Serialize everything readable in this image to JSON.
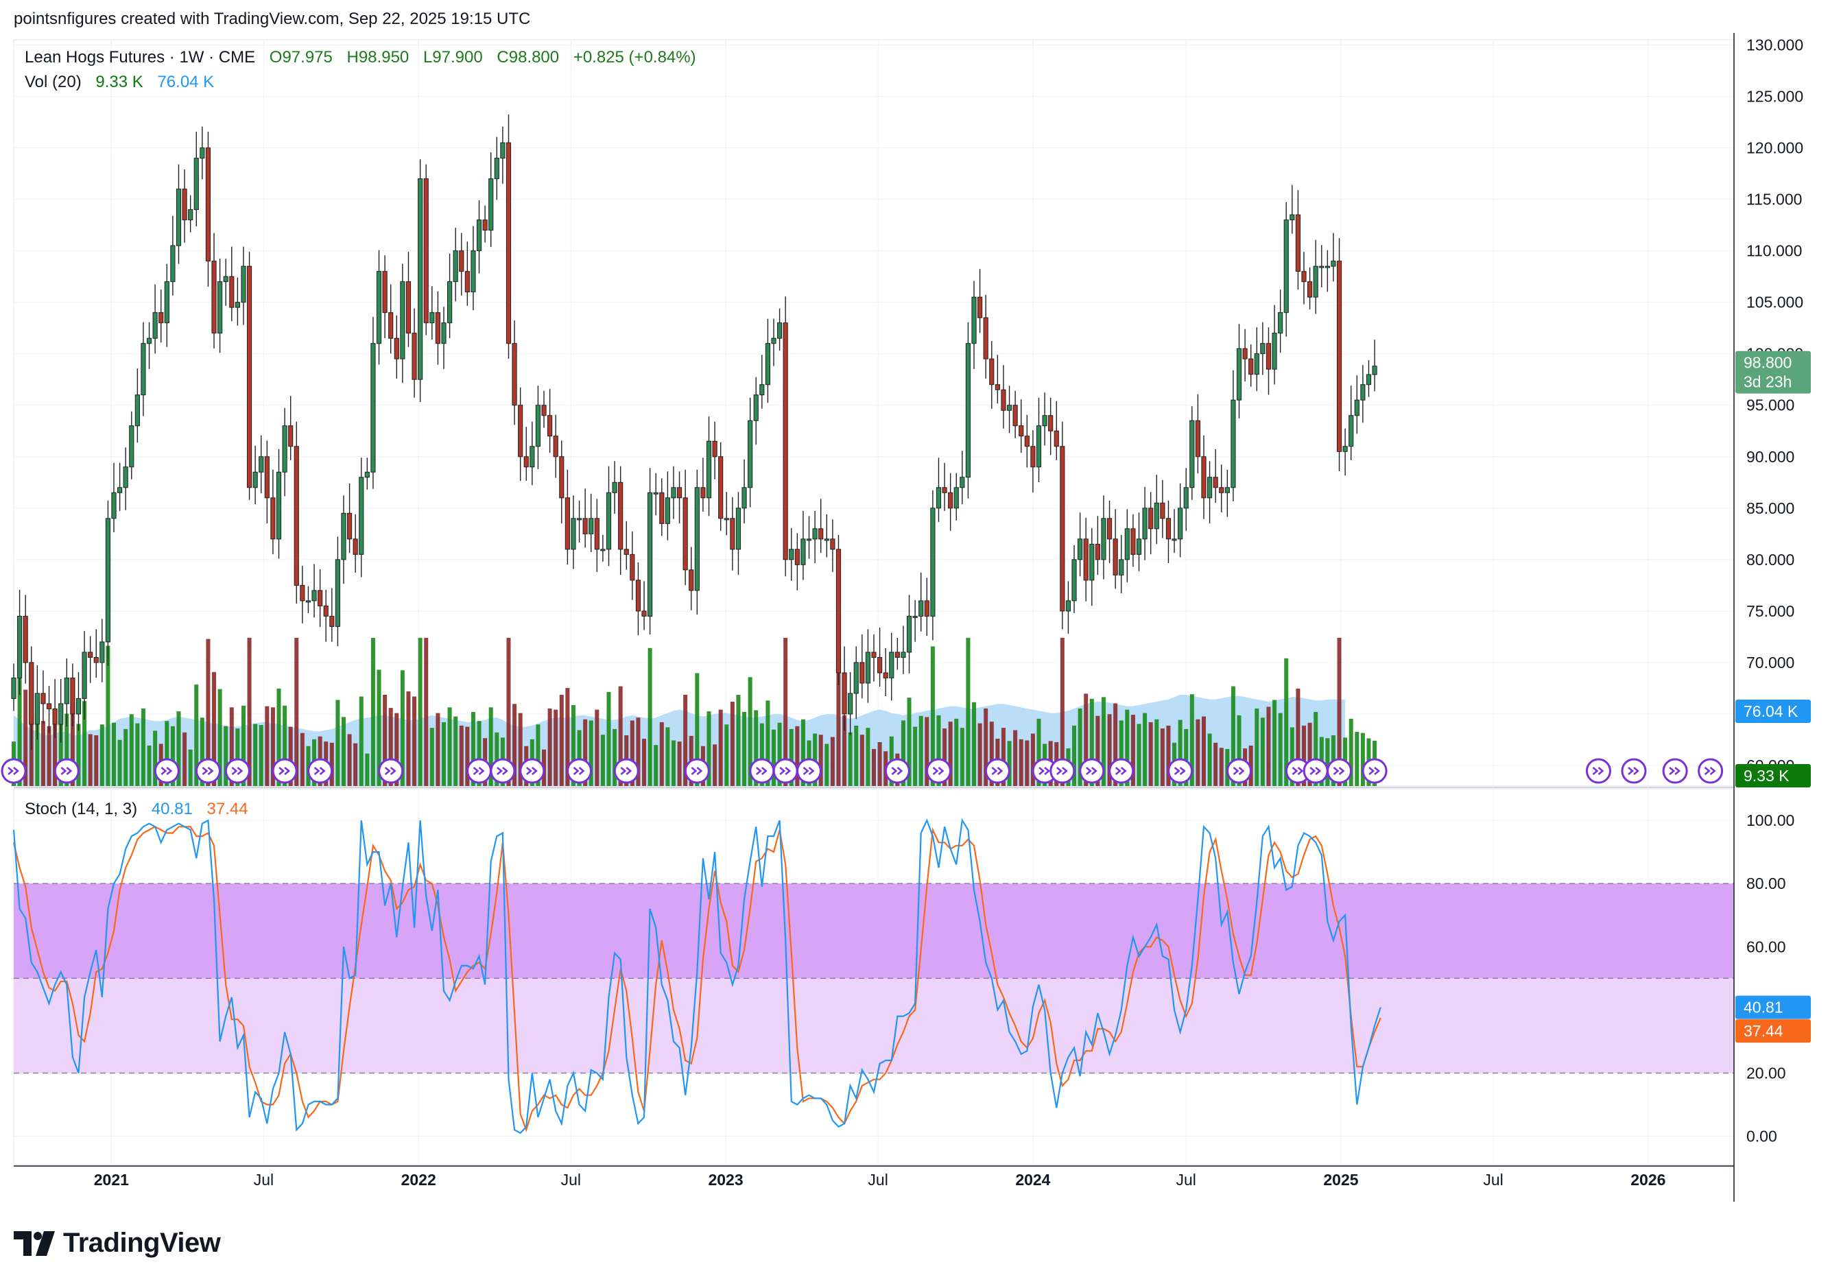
{
  "credit": "pointsnfigures created with TradingView.com, Sep 22, 2025 19:15 UTC",
  "legend": {
    "symbol": "Lean Hogs Futures · 1W · CME",
    "open": "O97.975",
    "high": "H98.950",
    "low": "L97.900",
    "close": "C98.800",
    "change": "+0.825 (+0.84%)",
    "vol_label": "Vol (20)",
    "vol_value": "9.33 K",
    "vol_ma": "76.04 K",
    "stoch_label": "Stoch (14, 1, 3)",
    "stoch_k": "40.81",
    "stoch_d": "37.44"
  },
  "tags": {
    "price": "98.800",
    "countdown": "3d 23h",
    "vol_ma": "76.04 K",
    "vol": "9.33 K",
    "k": "40.81",
    "d": "37.44"
  },
  "brand": "TradingView",
  "colors": {
    "up": "#2e8b57",
    "down": "#b2382a",
    "vol_up": "#1a8c1a",
    "vol_down": "#8c2a2a",
    "vol_ma_fill": "#aed8f7",
    "k_line": "#2196f3",
    "d_line": "#f7681b",
    "band_upper": "#d7a4f7",
    "band_lower": "#ecd4fb",
    "event_icon": "#7b2fd6"
  },
  "chart_data": [
    {
      "type": "candlestick",
      "title": "Lean Hogs Futures · 1W · CME",
      "y_ticks": [
        60,
        65,
        70,
        75,
        80,
        85,
        90,
        95,
        100,
        105,
        110,
        115,
        120,
        125,
        130
      ],
      "y_tick_labels": [
        "60.000",
        "65.000",
        "70.000",
        "75.000",
        "80.000",
        "85.000",
        "90.000",
        "95.000",
        "100.000",
        "105.000",
        "110.000",
        "115.000",
        "120.000",
        "125.000",
        "130.000"
      ],
      "ylim": [
        58,
        130.5
      ],
      "x_tick_labels": [
        "2021",
        "Jul",
        "2022",
        "Jul",
        "2023",
        "Jul",
        "2024",
        "Jul",
        "2025",
        "Jul",
        "2026"
      ],
      "x_tick_dates": [
        "2021-01-01",
        "2021-07-01",
        "2022-01-01",
        "2022-07-01",
        "2023-01-01",
        "2023-07-01",
        "2024-01-01",
        "2024-07-01",
        "2025-01-01",
        "2025-07-01",
        "2026-01-01"
      ],
      "x_range": [
        "2020-09-07",
        "2026-04-13"
      ],
      "first_bar_date": "2020-09-07",
      "bar_interval": "1 week",
      "closes": [
        68.5,
        74.5,
        70,
        64,
        67,
        66,
        65.5,
        64,
        66,
        68.5,
        65,
        66.5,
        71,
        70.5,
        70,
        72,
        84,
        86.5,
        87,
        89,
        93,
        96,
        101,
        101.5,
        104,
        103,
        107,
        110.5,
        116,
        113,
        114,
        119,
        120,
        109,
        102,
        107,
        107.5,
        104.5,
        105,
        108.5,
        87,
        88.5,
        90,
        86,
        82,
        88.5,
        93,
        91,
        77.5,
        76,
        76,
        77,
        75.5,
        74.5,
        73.5,
        80,
        84.5,
        82,
        80.5,
        88,
        88.5,
        101,
        108,
        104,
        101.5,
        99.5,
        107,
        102,
        97.5,
        117,
        103,
        104,
        101,
        103,
        107,
        110,
        108,
        106,
        110,
        113,
        112,
        117,
        119,
        120.5,
        101,
        95,
        90,
        89,
        91,
        95,
        94,
        92,
        90,
        86,
        81,
        84,
        84,
        82.5,
        84,
        81,
        81,
        86.5,
        87.5,
        81,
        80.5,
        78,
        75,
        74.5,
        86.5,
        86.5,
        83.5,
        86,
        87,
        86,
        79,
        77,
        87,
        86,
        91.5,
        90,
        84,
        84,
        81,
        85,
        87,
        93.5,
        96,
        97,
        101,
        101.5,
        103,
        80,
        81,
        79.5,
        82,
        82,
        83,
        82,
        82,
        81,
        69,
        65,
        67,
        70,
        68,
        71,
        70.5,
        69,
        68.5,
        71,
        70.5,
        71,
        74.5,
        74.5,
        76,
        74.5,
        85,
        87,
        86.5,
        85,
        87,
        88,
        101,
        105.5,
        103.5,
        99.5,
        97,
        96.5,
        94.5,
        95,
        93,
        92,
        91,
        89,
        93,
        94,
        92.5,
        91,
        75,
        76,
        80,
        82,
        78,
        81.5,
        80,
        84,
        82,
        78.5,
        80,
        83,
        80.5,
        82,
        85,
        83,
        85.5,
        84,
        82,
        82,
        85,
        87,
        93.5,
        90,
        86,
        88,
        87,
        86.5,
        87,
        95.5,
        100.5,
        99.5,
        98,
        100,
        101,
        98.5,
        102,
        104,
        113,
        113.5,
        108,
        107,
        105.5,
        108.5,
        108.5,
        108.5,
        109,
        90.5,
        91,
        94,
        95.5,
        97,
        97.975,
        98.8
      ],
      "volume_k": [
        62,
        58,
        53,
        50,
        48,
        45,
        44,
        46,
        48,
        47,
        45,
        44,
        47,
        49,
        49,
        51,
        53,
        56,
        59,
        60,
        61,
        60,
        59,
        58,
        57,
        57,
        58,
        60,
        61,
        60,
        59,
        58,
        57,
        56,
        55,
        54,
        53,
        52,
        52,
        53,
        54,
        55,
        56,
        56,
        55,
        54,
        53,
        52,
        51,
        50,
        49,
        48,
        48,
        49,
        50,
        52,
        54,
        56,
        58,
        59,
        60,
        61,
        62,
        62,
        61,
        60,
        59,
        58,
        58,
        59,
        61,
        62,
        61,
        60,
        59,
        58,
        57,
        56,
        56,
        57,
        58,
        60,
        60,
        58,
        55,
        53,
        52,
        52,
        53,
        55,
        57,
        59,
        60,
        60,
        60,
        61,
        62,
        62,
        61,
        60,
        59,
        58,
        58,
        59,
        61,
        62,
        61,
        60,
        59,
        60,
        62,
        64,
        66,
        67,
        66,
        64,
        62,
        61,
        62,
        63,
        64,
        64,
        63,
        62,
        61,
        60,
        60,
        61,
        62,
        63,
        63,
        62,
        60,
        58,
        57,
        58,
        60,
        62,
        63,
        63,
        62,
        60,
        59,
        60,
        62,
        64,
        66,
        67,
        66,
        64,
        63,
        62,
        63,
        64,
        65,
        66,
        67,
        68,
        69,
        70,
        70,
        69,
        68,
        68,
        69,
        70,
        71,
        72,
        72,
        71,
        70,
        69,
        68,
        67,
        66,
        65,
        64,
        64,
        65,
        66,
        68,
        70,
        72,
        73,
        74,
        74,
        73,
        72,
        71,
        70,
        70,
        71,
        72,
        73,
        74,
        75,
        76,
        78,
        80,
        80,
        79,
        78,
        77,
        76,
        76,
        77,
        78,
        79,
        79,
        78,
        77,
        76,
        75,
        74,
        75,
        76,
        77,
        78,
        78,
        77,
        76,
        75,
        75,
        76,
        76,
        76.04,
        76.04
      ]
    },
    {
      "type": "line",
      "title": "Stoch (14, 1, 3)",
      "series": [
        {
          "name": "%K",
          "values": [
            97,
            72,
            69,
            55,
            52,
            47,
            42,
            48,
            52,
            48,
            25,
            20,
            44,
            52,
            59,
            44,
            72,
            80,
            83,
            91,
            95,
            96,
            98,
            99,
            98,
            93,
            97,
            98,
            99,
            98,
            97,
            88,
            99,
            100,
            75,
            30,
            38,
            44,
            28,
            32,
            6,
            14,
            12,
            4,
            15,
            20,
            33,
            26,
            2,
            4,
            10,
            11,
            11,
            10,
            10,
            12,
            60,
            50,
            51,
            100,
            86,
            90,
            90,
            73,
            80,
            63,
            79,
            93,
            66,
            100,
            76,
            65,
            78,
            46,
            43,
            49,
            54,
            54,
            53,
            57,
            48,
            87,
            95,
            96,
            18,
            2,
            1,
            3,
            20,
            6,
            12,
            18,
            8,
            4,
            16,
            20,
            10,
            8,
            21,
            20,
            18,
            44,
            58,
            56,
            25,
            13,
            4,
            6,
            72,
            66,
            48,
            43,
            30,
            28,
            13,
            28,
            52,
            88,
            75,
            90,
            58,
            55,
            48,
            54,
            75,
            87,
            98,
            79,
            95,
            95,
            100,
            62,
            11,
            10,
            12,
            13,
            12,
            12,
            10,
            5,
            3,
            4,
            16,
            12,
            21,
            18,
            14,
            23,
            24,
            24,
            38,
            38,
            39,
            42,
            96,
            100,
            95,
            85,
            98,
            91,
            86,
            100,
            97,
            78,
            68,
            55,
            50,
            40,
            43,
            33,
            30,
            26,
            27,
            41,
            48,
            40,
            20,
            9,
            20,
            25,
            28,
            19,
            33,
            29,
            39,
            33,
            26,
            32,
            40,
            54,
            63,
            57,
            60,
            63,
            67,
            57,
            56,
            40,
            33,
            40,
            54,
            75,
            98,
            96,
            88,
            67,
            71,
            55,
            45,
            52,
            57,
            74,
            95,
            98,
            85,
            88,
            78,
            79,
            92,
            96,
            95,
            93,
            89,
            68,
            62,
            68,
            70,
            35,
            10,
            22,
            28,
            35,
            40.81
          ]
        },
        {
          "name": "%D",
          "values": [
            93,
            85,
            79,
            66,
            59,
            52,
            47,
            46,
            49,
            49,
            42,
            32,
            30,
            39,
            52,
            53,
            58,
            65,
            78,
            85,
            89,
            94,
            96,
            97,
            98,
            97,
            96,
            96,
            98,
            98,
            98,
            95,
            95,
            96,
            92,
            70,
            48,
            37,
            37,
            35,
            22,
            17,
            11,
            10,
            10,
            13,
            23,
            26,
            20,
            11,
            6,
            8,
            11,
            11,
            10,
            11,
            27,
            41,
            54,
            67,
            79,
            92,
            89,
            84,
            81,
            72,
            74,
            78,
            79,
            86,
            81,
            80,
            73,
            63,
            56,
            46,
            49,
            52,
            54,
            55,
            53,
            64,
            77,
            93,
            70,
            39,
            7,
            2,
            8,
            10,
            13,
            12,
            13,
            10,
            9,
            13,
            15,
            13,
            13,
            16,
            20,
            27,
            40,
            53,
            46,
            31,
            14,
            8,
            27,
            48,
            62,
            52,
            40,
            34,
            24,
            23,
            31,
            56,
            72,
            84,
            74,
            68,
            54,
            52,
            59,
            72,
            87,
            88,
            91,
            90,
            97,
            86,
            58,
            28,
            11,
            12,
            12,
            12,
            11,
            9,
            6,
            4,
            8,
            11,
            16,
            17,
            18,
            18,
            20,
            24,
            29,
            33,
            38,
            40,
            59,
            79,
            97,
            93,
            93,
            91,
            92,
            92,
            94,
            92,
            81,
            67,
            58,
            48,
            44,
            39,
            35,
            30,
            28,
            31,
            39,
            43,
            36,
            23,
            16,
            18,
            24,
            24,
            27,
            27,
            34,
            34,
            33,
            30,
            33,
            42,
            52,
            58,
            60,
            60,
            63,
            62,
            60,
            51,
            43,
            38,
            42,
            56,
            76,
            90,
            94,
            84,
            75,
            64,
            57,
            51,
            51,
            61,
            75,
            89,
            93,
            90,
            84,
            82,
            83,
            89,
            94,
            95,
            92,
            83,
            73,
            66,
            57,
            38,
            22,
            22,
            28,
            33,
            37.44
          ]
        }
      ],
      "y_ticks": [
        0,
        20,
        40,
        60,
        80,
        100
      ],
      "y_tick_labels": [
        "0.00",
        "20.00",
        "40.00",
        "60.00",
        "80.00",
        "100.00"
      ],
      "ylim": [
        -9,
        110
      ],
      "bands": [
        20,
        50,
        80
      ]
    }
  ]
}
